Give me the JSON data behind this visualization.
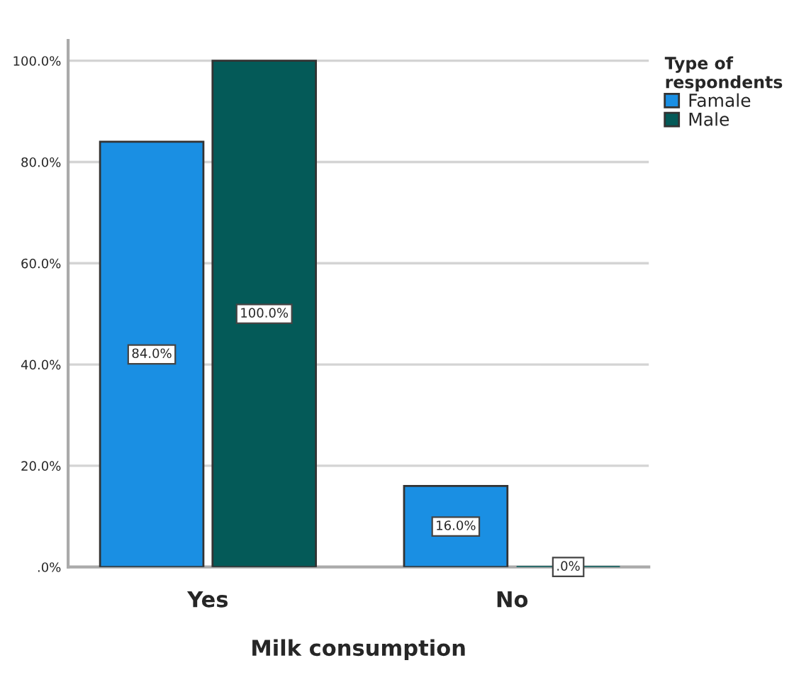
{
  "chart_data": {
    "type": "bar",
    "xlabel": "Milk consumption",
    "legend_title": "Type of\nrespondents",
    "legend": "top right",
    "categories": [
      "Yes",
      "No"
    ],
    "series": [
      {
        "name": "Famale",
        "color": "#1a8fe3",
        "values": [
          84.0,
          16.0
        ],
        "value_labels": [
          "84.0%",
          "16.0%"
        ]
      },
      {
        "name": "Male",
        "color": "#045a58",
        "values": [
          100.0,
          0.0
        ],
        "value_labels": [
          "100.0%",
          ".0%"
        ]
      }
    ],
    "ylim": [
      0,
      104
    ],
    "yticks": [
      {
        "value": 0,
        "label": ".0%"
      },
      {
        "value": 20,
        "label": "20.0%"
      },
      {
        "value": 40,
        "label": "40.0%"
      },
      {
        "value": 60,
        "label": "60.0%"
      },
      {
        "value": 80,
        "label": "80.0%"
      },
      {
        "value": 100,
        "label": "100.0%"
      }
    ],
    "grid": "y"
  }
}
